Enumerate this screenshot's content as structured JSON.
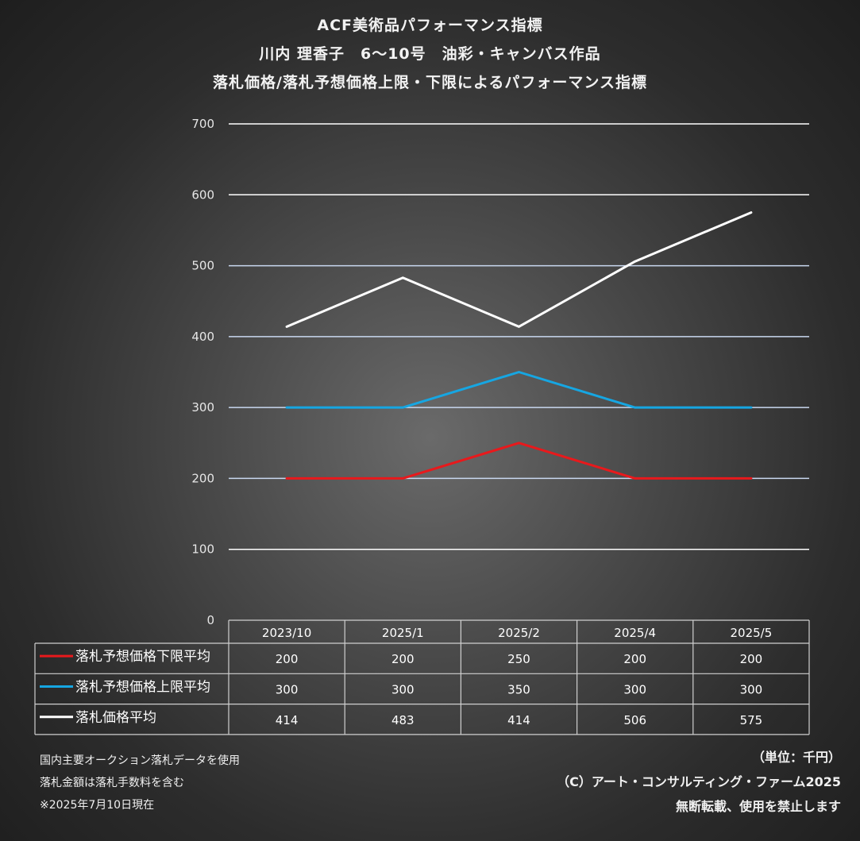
{
  "title": {
    "line1": "ACF美術品パフォーマンス指標",
    "line2": "川内 理香子　6～10号　油彩・キャンバス作品",
    "line3": "落札価格/落札予想価格上限・下限によるパフォーマンス指標"
  },
  "chart_data": {
    "type": "line",
    "categories": [
      "2023/10",
      "2025/1",
      "2025/2",
      "2025/4",
      "2025/5"
    ],
    "series": [
      {
        "name": "落札予想価格下限平均",
        "color": "#e8191c",
        "values": [
          200,
          200,
          250,
          200,
          200
        ]
      },
      {
        "name": "落札予想価格上限平均",
        "color": "#16a6e2",
        "values": [
          300,
          300,
          350,
          300,
          300
        ]
      },
      {
        "name": "落札価格平均",
        "color": "#ffffff",
        "values": [
          414,
          483,
          414,
          506,
          575
        ]
      }
    ],
    "yticks": [
      "0",
      "100",
      "200",
      "300",
      "400",
      "500",
      "600",
      "700"
    ],
    "ylim": [
      0,
      700
    ],
    "grid": true,
    "legend": "data-table"
  },
  "footer": {
    "note1": "国内主要オークション落札データを使用",
    "note2": "落札金額は落札手数料を含む",
    "note3": "※2025年7月10日現在",
    "unit": "（単位：千円）",
    "copyright": "（C）アート・コンサルティング・ファーム2025",
    "rights": "無断転載、使用を禁止します"
  }
}
